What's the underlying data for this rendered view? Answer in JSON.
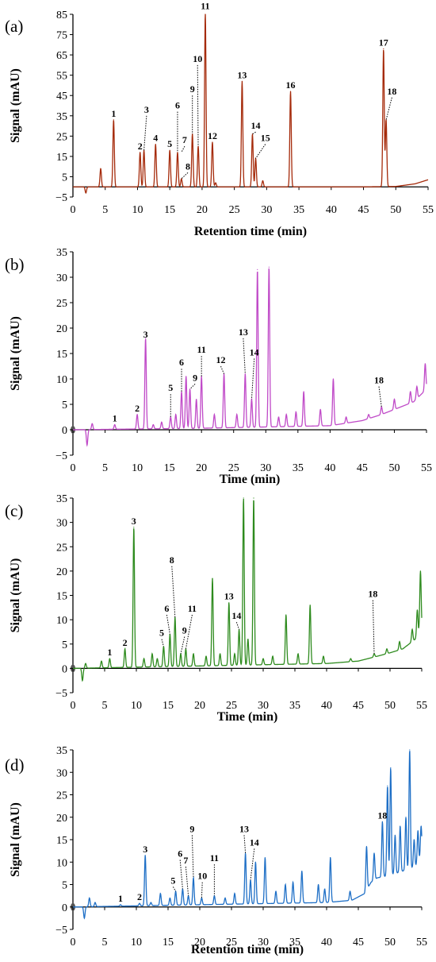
{
  "chart_data": [
    {
      "id": "a",
      "type": "line",
      "panel_label": "(a)",
      "xlabel": "Retention time (min)",
      "ylabel": "Signal (mAU)",
      "xlim": [
        0,
        55
      ],
      "ylim": [
        -5,
        85
      ],
      "x_ticks": [
        0,
        5,
        10,
        15,
        20,
        25,
        30,
        35,
        40,
        45,
        50,
        55
      ],
      "y_ticks": [
        -5,
        5,
        15,
        25,
        35,
        45,
        55,
        65,
        75,
        85
      ],
      "color": "#a52a0a",
      "baseline": [
        [
          0,
          0
        ],
        [
          10,
          0
        ],
        [
          30,
          0
        ],
        [
          45,
          0
        ],
        [
          50,
          0.2
        ],
        [
          53,
          1.5
        ],
        [
          55,
          3.5
        ]
      ],
      "peaks": [
        {
          "x": 2.0,
          "y": -3
        },
        {
          "x": 4.3,
          "y": 9
        },
        {
          "x": 6.3,
          "y": 33
        },
        {
          "x": 10.4,
          "y": 17
        },
        {
          "x": 11.0,
          "y": 18
        },
        {
          "x": 12.8,
          "y": 21
        },
        {
          "x": 15.0,
          "y": 18
        },
        {
          "x": 16.2,
          "y": 17
        },
        {
          "x": 16.8,
          "y": 4
        },
        {
          "x": 18.5,
          "y": 26
        },
        {
          "x": 19.4,
          "y": 20
        },
        {
          "x": 20.5,
          "y": 86
        },
        {
          "x": 21.6,
          "y": 22
        },
        {
          "x": 22.1,
          "y": 2
        },
        {
          "x": 26.2,
          "y": 52
        },
        {
          "x": 27.8,
          "y": 26
        },
        {
          "x": 28.3,
          "y": 14
        },
        {
          "x": 29.4,
          "y": 3
        },
        {
          "x": 33.7,
          "y": 47
        },
        {
          "x": 48.1,
          "y": 68
        },
        {
          "x": 48.5,
          "y": 33
        }
      ],
      "labels": [
        {
          "text": "1",
          "x": 6.3,
          "y": 33
        },
        {
          "text": "2",
          "x": 10.4,
          "y": 17
        },
        {
          "text": "3",
          "x": 11.0,
          "y": 18,
          "lx": 11.4,
          "ly": 35
        },
        {
          "text": "4",
          "x": 12.8,
          "y": 21
        },
        {
          "text": "5",
          "x": 15.0,
          "y": 18
        },
        {
          "text": "6",
          "x": 16.2,
          "y": 17,
          "lx": 16.2,
          "ly": 37
        },
        {
          "text": "7",
          "x": 16.8,
          "y": 17,
          "lx": 17.3,
          "ly": 20
        },
        {
          "text": "8",
          "x": 16.8,
          "y": 4,
          "lx": 17.8,
          "ly": 7
        },
        {
          "text": "9",
          "x": 18.5,
          "y": 26,
          "lx": 18.5,
          "ly": 45
        },
        {
          "text": "10",
          "x": 19.4,
          "y": 20,
          "lx": 19.3,
          "ly": 60
        },
        {
          "text": "11",
          "x": 20.5,
          "y": 86
        },
        {
          "text": "12",
          "x": 21.6,
          "y": 22
        },
        {
          "text": "13",
          "x": 26.2,
          "y": 52
        },
        {
          "text": "14",
          "x": 27.8,
          "y": 26,
          "lx": 28.3,
          "ly": 27
        },
        {
          "text": "15",
          "x": 28.3,
          "y": 14,
          "lx": 29.8,
          "ly": 21
        },
        {
          "text": "16",
          "x": 33.7,
          "y": 47
        },
        {
          "text": "17",
          "x": 48.1,
          "y": 68
        },
        {
          "text": "18",
          "x": 48.5,
          "y": 33,
          "lx": 49.4,
          "ly": 44
        }
      ]
    },
    {
      "id": "b",
      "type": "line",
      "panel_label": "(b)",
      "xlabel": "Time (min)",
      "ylabel": "Signal (mAU)",
      "xlim": [
        0,
        55
      ],
      "ylim": [
        -5,
        35
      ],
      "x_ticks": [
        0,
        5,
        10,
        15,
        20,
        25,
        30,
        35,
        40,
        45,
        50,
        55
      ],
      "y_ticks": [
        -5,
        0,
        5,
        10,
        15,
        20,
        25,
        30,
        35
      ],
      "color": "#c04ac8",
      "baseline": [
        [
          0,
          0
        ],
        [
          20,
          0.3
        ],
        [
          40,
          0.8
        ],
        [
          45,
          1.8
        ],
        [
          48,
          3
        ],
        [
          50,
          4
        ],
        [
          53,
          5.5
        ],
        [
          55,
          8
        ]
      ],
      "peaks": [
        {
          "x": 2.2,
          "y": -3
        },
        {
          "x": 3.0,
          "y": 1.2
        },
        {
          "x": 6.5,
          "y": 1
        },
        {
          "x": 10.0,
          "y": 3
        },
        {
          "x": 11.3,
          "y": 18
        },
        {
          "x": 12.5,
          "y": 1
        },
        {
          "x": 13.8,
          "y": 1.5
        },
        {
          "x": 15.2,
          "y": 2.5
        },
        {
          "x": 16.0,
          "y": 3
        },
        {
          "x": 16.9,
          "y": 7.5
        },
        {
          "x": 17.6,
          "y": 10.5
        },
        {
          "x": 18.2,
          "y": 8
        },
        {
          "x": 19.2,
          "y": 6
        },
        {
          "x": 20.0,
          "y": 10.5
        },
        {
          "x": 22.0,
          "y": 3
        },
        {
          "x": 23.5,
          "y": 11
        },
        {
          "x": 25.5,
          "y": 3
        },
        {
          "x": 26.8,
          "y": 11
        },
        {
          "x": 27.8,
          "y": 6
        },
        {
          "x": 28.7,
          "y": 31.5
        },
        {
          "x": 30.5,
          "y": 32
        },
        {
          "x": 32.0,
          "y": 2.5
        },
        {
          "x": 33.2,
          "y": 3
        },
        {
          "x": 34.7,
          "y": 3.5
        },
        {
          "x": 35.9,
          "y": 7.5
        },
        {
          "x": 38.5,
          "y": 4
        },
        {
          "x": 40.5,
          "y": 10
        },
        {
          "x": 42.5,
          "y": 2.5
        },
        {
          "x": 46.0,
          "y": 3
        },
        {
          "x": 48.0,
          "y": 4.5
        },
        {
          "x": 50.0,
          "y": 6
        },
        {
          "x": 52.5,
          "y": 7.5
        },
        {
          "x": 53.5,
          "y": 8.5
        },
        {
          "x": 54.8,
          "y": 13
        }
      ],
      "labels": [
        {
          "text": "1",
          "x": 6.5,
          "y": 1
        },
        {
          "text": "2",
          "x": 10.0,
          "y": 3
        },
        {
          "text": "3",
          "x": 11.3,
          "y": 17.5
        },
        {
          "text": "5",
          "x": 15.2,
          "y": 2.5,
          "lx": 15.2,
          "ly": 7
        },
        {
          "text": "6",
          "x": 16.9,
          "y": 7.5,
          "lx": 16.9,
          "ly": 12
        },
        {
          "text": "9",
          "x": 18.2,
          "y": 8,
          "lx": 19.0,
          "ly": 9
        },
        {
          "text": "11",
          "x": 20.0,
          "y": 10.5,
          "lx": 20.0,
          "ly": 14.5
        },
        {
          "text": "12",
          "x": 23.5,
          "y": 11,
          "lx": 23.0,
          "ly": 12.5
        },
        {
          "text": "13",
          "x": 26.8,
          "y": 11,
          "lx": 26.5,
          "ly": 18
        },
        {
          "text": "14",
          "x": 27.8,
          "y": 6,
          "lx": 28.2,
          "ly": 14
        },
        {
          "text": "18",
          "x": 48.0,
          "y": 4.5,
          "lx": 47.6,
          "ly": 8.5
        }
      ]
    },
    {
      "id": "c",
      "type": "line",
      "panel_label": "(c)",
      "xlabel": "Time (min)",
      "ylabel": "Signal (mAU)",
      "xlim": [
        0,
        55
      ],
      "ylim": [
        -5,
        35
      ],
      "x_ticks": [
        0,
        5,
        10,
        15,
        20,
        25,
        30,
        35,
        40,
        45,
        50,
        55
      ],
      "y_ticks": [
        -5,
        0,
        5,
        10,
        15,
        20,
        25,
        30,
        35
      ],
      "color": "#2e8b1e",
      "baseline": [
        [
          0,
          0
        ],
        [
          20,
          0.5
        ],
        [
          40,
          1
        ],
        [
          45,
          1.5
        ],
        [
          48,
          2.5
        ],
        [
          50,
          3.2
        ],
        [
          52,
          4
        ],
        [
          54,
          6
        ],
        [
          55,
          8
        ]
      ],
      "peaks": [
        {
          "x": 1.5,
          "y": -2.5
        },
        {
          "x": 2.0,
          "y": 1
        },
        {
          "x": 4.5,
          "y": 1.5
        },
        {
          "x": 5.8,
          "y": 2
        },
        {
          "x": 8.2,
          "y": 4
        },
        {
          "x": 9.6,
          "y": 29
        },
        {
          "x": 11.2,
          "y": 2
        },
        {
          "x": 12.5,
          "y": 3
        },
        {
          "x": 13.3,
          "y": 2
        },
        {
          "x": 14.3,
          "y": 4.5
        },
        {
          "x": 15.3,
          "y": 7
        },
        {
          "x": 16.1,
          "y": 10.5
        },
        {
          "x": 17.0,
          "y": 3
        },
        {
          "x": 17.8,
          "y": 4
        },
        {
          "x": 19.0,
          "y": 3
        },
        {
          "x": 21.0,
          "y": 2.5
        },
        {
          "x": 22.0,
          "y": 18.5
        },
        {
          "x": 23.2,
          "y": 3
        },
        {
          "x": 24.6,
          "y": 13.5
        },
        {
          "x": 25.5,
          "y": 3
        },
        {
          "x": 26.2,
          "y": 8
        },
        {
          "x": 26.9,
          "y": 35
        },
        {
          "x": 27.6,
          "y": 6
        },
        {
          "x": 28.5,
          "y": 35
        },
        {
          "x": 30.0,
          "y": 2
        },
        {
          "x": 31.5,
          "y": 2.5
        },
        {
          "x": 33.6,
          "y": 11
        },
        {
          "x": 35.5,
          "y": 3
        },
        {
          "x": 37.4,
          "y": 13
        },
        {
          "x": 39.5,
          "y": 2.5
        },
        {
          "x": 43.8,
          "y": 2
        },
        {
          "x": 47.5,
          "y": 3
        },
        {
          "x": 49.5,
          "y": 4
        },
        {
          "x": 51.5,
          "y": 5.5
        },
        {
          "x": 53.5,
          "y": 8
        },
        {
          "x": 54.3,
          "y": 12
        },
        {
          "x": 54.8,
          "y": 20
        }
      ],
      "labels": [
        {
          "text": "1",
          "x": 5.8,
          "y": 2
        },
        {
          "text": "2",
          "x": 8.2,
          "y": 4
        },
        {
          "text": "3",
          "x": 9.6,
          "y": 29
        },
        {
          "text": "5",
          "x": 14.3,
          "y": 4.5,
          "lx": 14.0,
          "ly": 6
        },
        {
          "text": "6",
          "x": 15.3,
          "y": 7,
          "lx": 14.8,
          "ly": 11
        },
        {
          "text": "8",
          "x": 16.1,
          "y": 10.5,
          "lx": 15.6,
          "ly": 21
        },
        {
          "text": "9",
          "x": 17.0,
          "y": 3,
          "lx": 17.6,
          "ly": 6.5
        },
        {
          "text": "11",
          "x": 17.8,
          "y": 4,
          "lx": 18.8,
          "ly": 11
        },
        {
          "text": "13",
          "x": 24.6,
          "y": 13.5
        },
        {
          "text": "14",
          "x": 26.2,
          "y": 8,
          "lx": 25.8,
          "ly": 9.5
        },
        {
          "text": "18",
          "x": 47.5,
          "y": 3,
          "lx": 47.3,
          "ly": 14
        }
      ]
    },
    {
      "id": "d",
      "type": "line",
      "panel_label": "(d)",
      "xlabel": "Retention time (min)",
      "ylabel": "Signal (mAU)",
      "xlim": [
        0,
        55
      ],
      "ylim": [
        -5,
        35
      ],
      "x_ticks": [
        0,
        5,
        10,
        15,
        20,
        25,
        30,
        35,
        40,
        45,
        50,
        55
      ],
      "y_ticks": [
        -5,
        0,
        5,
        10,
        15,
        20,
        25,
        30,
        35
      ],
      "color": "#1e6fc6",
      "baseline": [
        [
          0,
          0
        ],
        [
          20,
          0.5
        ],
        [
          40,
          1
        ],
        [
          44,
          1.5
        ],
        [
          46,
          3
        ],
        [
          47,
          5.5
        ],
        [
          48,
          6.5
        ],
        [
          50,
          7
        ],
        [
          52,
          8
        ],
        [
          54,
          9
        ],
        [
          55,
          11
        ]
      ],
      "peaks": [
        {
          "x": 1.8,
          "y": -2.5
        },
        {
          "x": 2.6,
          "y": 2
        },
        {
          "x": 3.5,
          "y": 1
        },
        {
          "x": 7.5,
          "y": 0.5
        },
        {
          "x": 10.5,
          "y": 0.8
        },
        {
          "x": 11.4,
          "y": 11.5
        },
        {
          "x": 12.3,
          "y": 1
        },
        {
          "x": 13.8,
          "y": 3
        },
        {
          "x": 15.3,
          "y": 2
        },
        {
          "x": 16.2,
          "y": 3.5
        },
        {
          "x": 17.3,
          "y": 4
        },
        {
          "x": 18.2,
          "y": 2.5
        },
        {
          "x": 19.0,
          "y": 6.5
        },
        {
          "x": 20.3,
          "y": 2
        },
        {
          "x": 22.3,
          "y": 2.5
        },
        {
          "x": 24.0,
          "y": 2
        },
        {
          "x": 25.5,
          "y": 3
        },
        {
          "x": 27.2,
          "y": 12
        },
        {
          "x": 28.0,
          "y": 6
        },
        {
          "x": 28.8,
          "y": 10
        },
        {
          "x": 30.3,
          "y": 11
        },
        {
          "x": 32.0,
          "y": 3.5
        },
        {
          "x": 33.5,
          "y": 5
        },
        {
          "x": 34.7,
          "y": 5.5
        },
        {
          "x": 36.1,
          "y": 8
        },
        {
          "x": 38.7,
          "y": 5
        },
        {
          "x": 39.7,
          "y": 4
        },
        {
          "x": 40.6,
          "y": 11
        },
        {
          "x": 43.7,
          "y": 3.5
        },
        {
          "x": 46.3,
          "y": 13.5
        },
        {
          "x": 47.5,
          "y": 12
        },
        {
          "x": 48.8,
          "y": 19
        },
        {
          "x": 49.6,
          "y": 27
        },
        {
          "x": 50.1,
          "y": 31
        },
        {
          "x": 50.8,
          "y": 16
        },
        {
          "x": 51.6,
          "y": 18
        },
        {
          "x": 52.5,
          "y": 20
        },
        {
          "x": 53.1,
          "y": 35
        },
        {
          "x": 53.8,
          "y": 15
        },
        {
          "x": 54.4,
          "y": 17
        },
        {
          "x": 54.9,
          "y": 18
        }
      ],
      "labels": [
        {
          "text": "1",
          "x": 7.5,
          "y": 0.5
        },
        {
          "text": "2",
          "x": 10.5,
          "y": 0.8
        },
        {
          "text": "3",
          "x": 11.4,
          "y": 11.5
        },
        {
          "text": "5",
          "x": 16.2,
          "y": 3.5,
          "lx": 15.8,
          "ly": 4.5
        },
        {
          "text": "6",
          "x": 17.3,
          "y": 4,
          "lx": 16.9,
          "ly": 10.5
        },
        {
          "text": "7",
          "x": 18.2,
          "y": 2.5,
          "lx": 17.8,
          "ly": 9
        },
        {
          "text": "9",
          "x": 19.0,
          "y": 6.5,
          "lx": 18.8,
          "ly": 16
        },
        {
          "text": "10",
          "x": 20.3,
          "y": 2,
          "lx": 20.4,
          "ly": 5.5
        },
        {
          "text": "11",
          "x": 22.3,
          "y": 2.5,
          "lx": 22.3,
          "ly": 9.5
        },
        {
          "text": "13",
          "x": 27.2,
          "y": 12,
          "lx": 27.0,
          "ly": 16
        },
        {
          "text": "14",
          "x": 28.0,
          "y": 6,
          "lx": 28.6,
          "ly": 13
        },
        {
          "text": "18",
          "x": 48.8,
          "y": 19
        }
      ]
    }
  ]
}
